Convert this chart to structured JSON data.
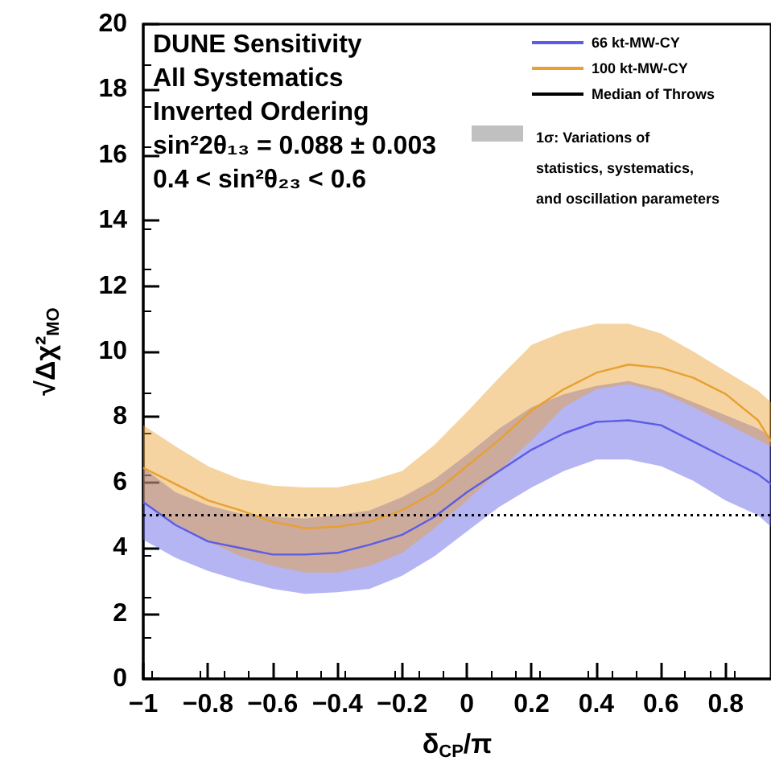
{
  "chart_data": {
    "type": "line",
    "xlabel": "δ$_{CP}$/π",
    "ylabel": "√Δχ²$_{MO}$",
    "annotations": [
      "DUNE Sensitivity",
      "All Systematics",
      "Inverted Ordering",
      "sin²2θ₁₃ = 0.088 ± 0.003",
      "0.4 < sin²θ₂₃ < 0.6",
      "1σ: Variations of\nstatistics, systematics,\nand oscillation parameters"
    ],
    "x": [
      -1,
      -0.9,
      -0.8,
      -0.7,
      -0.6,
      -0.5,
      -0.4,
      -0.3,
      -0.2,
      -0.1,
      0,
      0.1,
      0.2,
      0.3,
      0.4,
      0.5,
      0.6,
      0.7,
      0.8,
      0.9,
      0.94
    ],
    "series": [
      {
        "name": "66 kt-MW-CY",
        "color": "#5c5ce6",
        "values": [
          5.4,
          4.7,
          4.2,
          4.0,
          3.8,
          3.8,
          3.85,
          4.1,
          4.4,
          4.95,
          5.7,
          6.35,
          7.0,
          7.5,
          7.85,
          7.9,
          7.75,
          7.25,
          6.75,
          6.25,
          5.95
        ],
        "lower": [
          4.25,
          3.7,
          3.3,
          3.0,
          2.75,
          2.6,
          2.65,
          2.75,
          3.15,
          3.75,
          4.5,
          5.25,
          5.85,
          6.35,
          6.7,
          6.7,
          6.5,
          6.05,
          5.45,
          5.0,
          4.65
        ],
        "upper": [
          6.45,
          5.7,
          5.3,
          5.05,
          4.95,
          4.9,
          5.0,
          5.15,
          5.55,
          6.1,
          6.85,
          7.65,
          8.3,
          8.7,
          8.95,
          9.1,
          8.85,
          8.45,
          8.05,
          7.65,
          7.4
        ]
      },
      {
        "name": "100 kt-MW-CY",
        "color": "#e8a030",
        "values": [
          6.45,
          5.95,
          5.45,
          5.15,
          4.8,
          4.6,
          4.65,
          4.8,
          5.15,
          5.7,
          6.5,
          7.3,
          8.2,
          8.85,
          9.35,
          9.6,
          9.5,
          9.2,
          8.7,
          7.9,
          7.25
        ],
        "lower": [
          5.4,
          4.75,
          4.2,
          3.75,
          3.45,
          3.25,
          3.25,
          3.45,
          3.85,
          4.6,
          5.45,
          6.35,
          7.3,
          8.3,
          8.85,
          9.0,
          8.75,
          8.3,
          7.8,
          7.3,
          7.1
        ],
        "upper": [
          7.75,
          7.1,
          6.5,
          6.1,
          5.9,
          5.85,
          5.85,
          6.05,
          6.35,
          7.15,
          8.15,
          9.2,
          10.2,
          10.6,
          10.85,
          10.85,
          10.55,
          10.0,
          9.4,
          8.8,
          8.45
        ]
      },
      {
        "name": "Median of Throws",
        "color": "#000000",
        "x": [
          -1,
          0.94
        ],
        "values": [
          5,
          5
        ],
        "line_style": "dotted"
      }
    ],
    "xlim": [
      -1,
      0.94
    ],
    "xticks": [
      {
        "value": -1,
        "label": "−1"
      },
      {
        "value": -0.8,
        "label": "−0.8"
      },
      {
        "value": -0.6,
        "label": "−0.6"
      },
      {
        "value": -0.4,
        "label": "−0.4"
      },
      {
        "value": -0.2,
        "label": "−0.2"
      },
      0,
      0.2,
      0.4,
      0.6,
      0.8
    ],
    "ylim": [
      0,
      20
    ],
    "yticks": [
      0,
      2,
      4,
      6,
      8,
      10,
      12,
      14,
      16,
      18,
      20
    ],
    "grid": false,
    "legend": "top right",
    "marker": "none",
    "line_style": "solid"
  }
}
